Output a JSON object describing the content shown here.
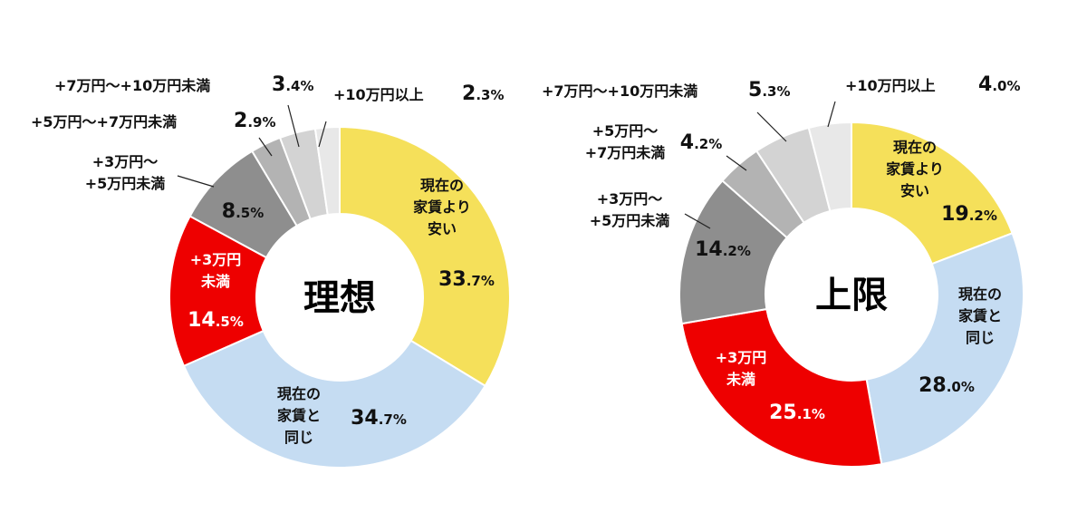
{
  "chart_data": [
    {
      "type": "pie",
      "title": "理想",
      "slices": [
        {
          "name": "現在の家賃より安い",
          "lines": [
            "現在の",
            "家賃より",
            "安い"
          ],
          "value": 33.7,
          "int": "33",
          "dec": ".7%",
          "color": "#f5e05a"
        },
        {
          "name": "現在の家賃と同じ",
          "lines": [
            "現在の",
            "家賃と",
            "同じ"
          ],
          "value": 34.7,
          "int": "34",
          "dec": ".7%",
          "color": "#c5dcf2"
        },
        {
          "name": "+3万円未満",
          "lines": [
            "+3万円",
            "未満"
          ],
          "value": 14.5,
          "int": "14",
          "dec": ".5%",
          "color": "#ee0000"
        },
        {
          "name": "+3万円～+5万円未満",
          "lines": [
            "+3万円～",
            "+5万円未満"
          ],
          "value": 8.5,
          "int": "8",
          "dec": ".5%",
          "color": "#8e8e8e"
        },
        {
          "name": "+5万円～+7万円未満",
          "lines": [
            "+5万円～+7万円未満"
          ],
          "value": 2.9,
          "int": "2",
          "dec": ".9%",
          "color": "#b3b3b3"
        },
        {
          "name": "+7万円～+10万円未満",
          "lines": [
            "+7万円～+10万円未満"
          ],
          "value": 3.4,
          "int": "3",
          "dec": ".4%",
          "color": "#d3d3d3"
        },
        {
          "name": "+10万円以上",
          "lines": [
            "+10万円以上"
          ],
          "value": 2.3,
          "int": "2",
          "dec": ".3%",
          "color": "#e8e8e8"
        }
      ]
    },
    {
      "type": "pie",
      "title": "上限",
      "slices": [
        {
          "name": "現在の家賃より安い",
          "lines": [
            "現在の",
            "家賃より",
            "安い"
          ],
          "value": 19.2,
          "int": "19",
          "dec": ".2%",
          "color": "#f5e05a"
        },
        {
          "name": "現在の家賃と同じ",
          "lines": [
            "現在の",
            "家賃と",
            "同じ"
          ],
          "value": 28.0,
          "int": "28",
          "dec": ".0%",
          "color": "#c5dcf2"
        },
        {
          "name": "+3万円未満",
          "lines": [
            "+3万円",
            "未満"
          ],
          "value": 25.1,
          "int": "25",
          "dec": ".1%",
          "color": "#ee0000"
        },
        {
          "name": "+3万円～+5万円未満",
          "lines": [
            "+3万円～",
            "+5万円未満"
          ],
          "value": 14.2,
          "int": "14",
          "dec": ".2%",
          "color": "#8e8e8e"
        },
        {
          "name": "+5万円～+7万円未満",
          "lines": [
            "+5万円～",
            "+7万円未満"
          ],
          "value": 4.2,
          "int": "4",
          "dec": ".2%",
          "color": "#b3b3b3"
        },
        {
          "name": "+7万円～+10万円未満",
          "lines": [
            "+7万円～+10万円未満"
          ],
          "value": 5.3,
          "int": "5",
          "dec": ".3%",
          "color": "#d3d3d3"
        },
        {
          "name": "+10万円以上",
          "lines": [
            "+10万円以上"
          ],
          "value": 4.0,
          "int": "4",
          "dec": ".0%",
          "color": "#e8e8e8"
        }
      ]
    }
  ]
}
